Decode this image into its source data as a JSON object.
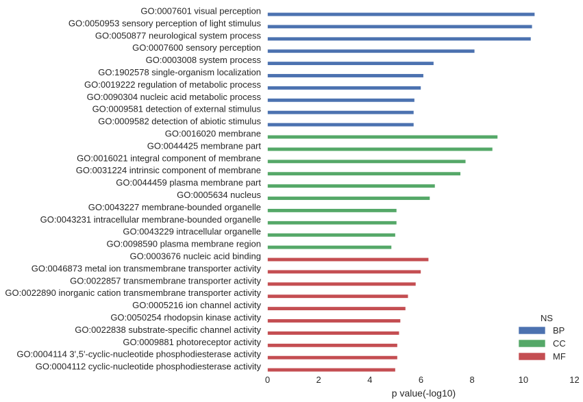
{
  "chart_data": {
    "type": "bar",
    "orientation": "horizontal",
    "xlabel": "p value(-log10)",
    "ylabel": "",
    "xlim": [
      0,
      12
    ],
    "xticks": [
      0,
      2,
      4,
      6,
      8,
      10,
      12
    ],
    "grid": false,
    "legend": {
      "title": "NS",
      "placement": "bottom-right",
      "entries": [
        {
          "name": "BP",
          "color": "#4c72b0"
        },
        {
          "name": "CC",
          "color": "#55a868"
        },
        {
          "name": "MF",
          "color": "#c44e52"
        }
      ]
    },
    "bars": [
      {
        "label": "GO:0007601 visual perception",
        "value": 10.45,
        "ns": "BP"
      },
      {
        "label": "GO:0050953 sensory perception of light stimulus",
        "value": 10.35,
        "ns": "BP"
      },
      {
        "label": "GO:0050877 neurological system process",
        "value": 10.3,
        "ns": "BP"
      },
      {
        "label": "GO:0007600 sensory perception",
        "value": 8.1,
        "ns": "BP"
      },
      {
        "label": "GO:0003008 system process",
        "value": 6.5,
        "ns": "BP"
      },
      {
        "label": "GO:1902578 single-organism localization",
        "value": 6.1,
        "ns": "BP"
      },
      {
        "label": "GO:0019222 regulation of metabolic process",
        "value": 6.0,
        "ns": "BP"
      },
      {
        "label": "GO:0090304 nucleic acid metabolic process",
        "value": 5.75,
        "ns": "BP"
      },
      {
        "label": "GO:0009581 detection of external stimulus",
        "value": 5.72,
        "ns": "BP"
      },
      {
        "label": "GO:0009582 detection of abiotic stimulus",
        "value": 5.72,
        "ns": "BP"
      },
      {
        "label": "GO:0016020 membrane",
        "value": 9.0,
        "ns": "CC"
      },
      {
        "label": "GO:0044425 membrane part",
        "value": 8.8,
        "ns": "CC"
      },
      {
        "label": "GO:0016021 integral component of membrane",
        "value": 7.75,
        "ns": "CC"
      },
      {
        "label": "GO:0031224 intrinsic component of membrane",
        "value": 7.55,
        "ns": "CC"
      },
      {
        "label": "GO:0044459 plasma membrane part",
        "value": 6.55,
        "ns": "CC"
      },
      {
        "label": "GO:0005634 nucleus",
        "value": 6.35,
        "ns": "CC"
      },
      {
        "label": "GO:0043227 membrane-bounded organelle",
        "value": 5.05,
        "ns": "CC"
      },
      {
        "label": "GO:0043231 intracellular membrane-bounded organelle",
        "value": 5.05,
        "ns": "CC"
      },
      {
        "label": "GO:0043229 intracellular organelle",
        "value": 5.0,
        "ns": "CC"
      },
      {
        "label": "GO:0098590 plasma membrane region",
        "value": 4.85,
        "ns": "CC"
      },
      {
        "label": "GO:0003676 nucleic acid binding",
        "value": 6.3,
        "ns": "MF"
      },
      {
        "label": "GO:0046873 metal ion transmembrane transporter activity",
        "value": 6.0,
        "ns": "MF"
      },
      {
        "label": "GO:0022857 transmembrane transporter activity",
        "value": 5.8,
        "ns": "MF"
      },
      {
        "label": "GO:0022890 inorganic cation transmembrane transporter activity",
        "value": 5.5,
        "ns": "MF"
      },
      {
        "label": "GO:0005216 ion channel activity",
        "value": 5.4,
        "ns": "MF"
      },
      {
        "label": "GO:0050254 rhodopsin kinase activity",
        "value": 5.2,
        "ns": "MF"
      },
      {
        "label": "GO:0022838 substrate-specific channel activity",
        "value": 5.15,
        "ns": "MF"
      },
      {
        "label": "GO:0009881 photoreceptor activity",
        "value": 5.08,
        "ns": "MF"
      },
      {
        "label": "GO:0004114 3',5'-cyclic-nucleotide phosphodiesterase activity",
        "value": 5.08,
        "ns": "MF"
      },
      {
        "label": "GO:0004112 cyclic-nucleotide phosphodiesterase activity",
        "value": 5.0,
        "ns": "MF"
      }
    ]
  }
}
